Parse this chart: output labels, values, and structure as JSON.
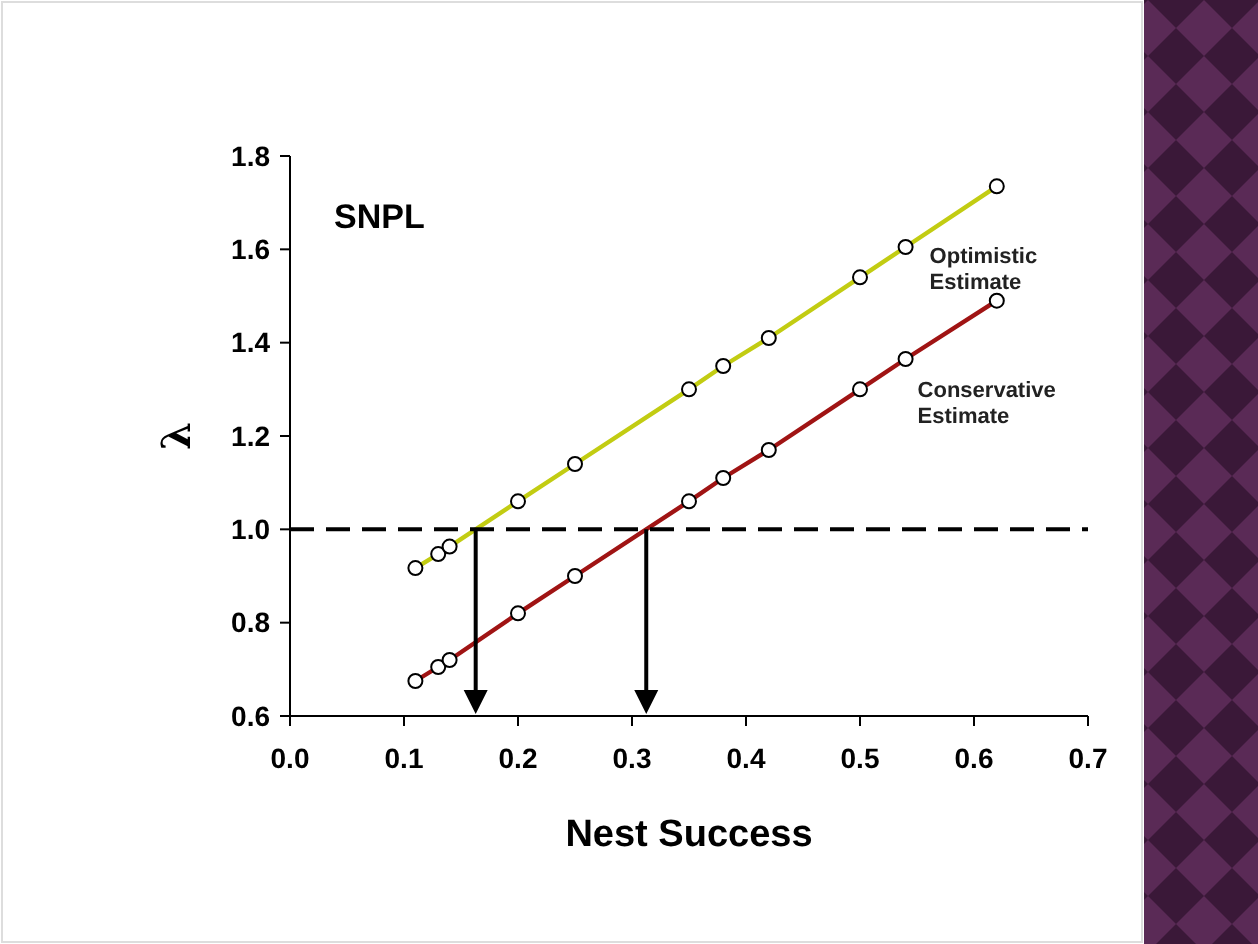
{
  "chart_data": {
    "type": "line",
    "title": "SNPL",
    "xlabel": "Nest Success",
    "ylabel": "λ",
    "x": [
      0.11,
      0.13,
      0.14,
      0.2,
      0.25,
      0.35,
      0.38,
      0.42,
      0.5,
      0.54,
      0.62
    ],
    "series": [
      {
        "name": "Optimistic Estimate",
        "color": "#c2cc12",
        "values": [
          0.917,
          0.947,
          0.963,
          1.06,
          1.14,
          1.3,
          1.35,
          1.41,
          1.54,
          1.605,
          1.735
        ]
      },
      {
        "name": "Conservative Estimate",
        "color": "#a01414",
        "values": [
          0.675,
          0.705,
          0.72,
          0.82,
          0.9,
          1.06,
          1.11,
          1.17,
          1.3,
          1.365,
          1.49
        ]
      }
    ],
    "xlim": [
      0,
      0.7
    ],
    "xticks": [
      {
        "value": 0,
        "label": "0.0"
      },
      0.1,
      0.2,
      0.3,
      0.4,
      0.5,
      0.6,
      0.7
    ],
    "ylim": [
      0.6,
      1.8
    ],
    "yticks": [
      0.6,
      0.8,
      {
        "value": 1,
        "label": "1.0"
      },
      1.2,
      1.4,
      1.6,
      1.8
    ],
    "ref_lines": [
      {
        "axis": "y",
        "value": 1,
        "color": "#000000",
        "line_style": "dashed"
      }
    ],
    "marker": "circle",
    "line_style": "solid",
    "grid": false,
    "legend": false
  }
}
